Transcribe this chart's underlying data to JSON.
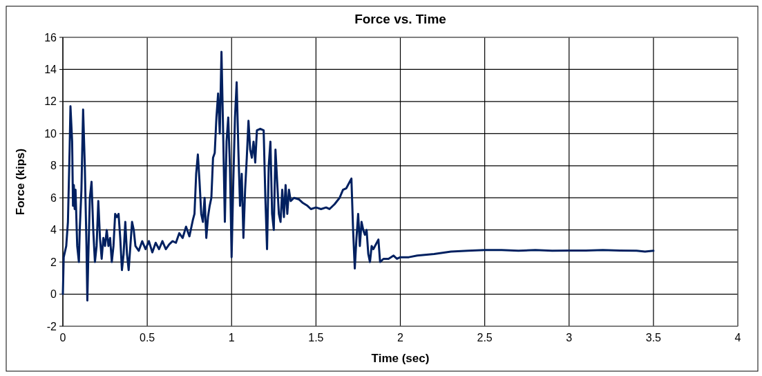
{
  "chart_data": {
    "type": "line",
    "title": "Force vs. Time",
    "xlabel": "Time (sec)",
    "ylabel": "Force (kips)",
    "xlim": [
      0,
      4
    ],
    "xticks": [
      0,
      0.5,
      1,
      1.5,
      2,
      2.5,
      3,
      3.5,
      4
    ],
    "ylim": [
      -2,
      16
    ],
    "yticks": [
      -2,
      0,
      2,
      4,
      6,
      8,
      10,
      12,
      14,
      16
    ],
    "grid": true,
    "marker": "none",
    "line_style": "solid",
    "series": [
      {
        "color": "#002060",
        "x": [
          0,
          0.005,
          0.02,
          0.03,
          0.04,
          0.045,
          0.055,
          0.06,
          0.065,
          0.07,
          0.075,
          0.085,
          0.095,
          0.1,
          0.11,
          0.12,
          0.13,
          0.14,
          0.145,
          0.15,
          0.155,
          0.16,
          0.17,
          0.18,
          0.19,
          0.2,
          0.21,
          0.22,
          0.23,
          0.24,
          0.25,
          0.26,
          0.27,
          0.28,
          0.29,
          0.3,
          0.31,
          0.32,
          0.33,
          0.34,
          0.35,
          0.36,
          0.37,
          0.38,
          0.39,
          0.4,
          0.41,
          0.42,
          0.43,
          0.45,
          0.47,
          0.49,
          0.51,
          0.53,
          0.55,
          0.57,
          0.59,
          0.61,
          0.63,
          0.65,
          0.67,
          0.69,
          0.71,
          0.73,
          0.75,
          0.77,
          0.78,
          0.79,
          0.8,
          0.81,
          0.82,
          0.83,
          0.84,
          0.85,
          0.86,
          0.87,
          0.88,
          0.89,
          0.9,
          0.91,
          0.92,
          0.93,
          0.94,
          0.95,
          0.96,
          0.97,
          0.98,
          0.99,
          1.0,
          1.01,
          1.02,
          1.03,
          1.04,
          1.05,
          1.06,
          1.07,
          1.08,
          1.09,
          1.1,
          1.11,
          1.12,
          1.13,
          1.14,
          1.15,
          1.17,
          1.19,
          1.2,
          1.21,
          1.22,
          1.23,
          1.24,
          1.25,
          1.26,
          1.27,
          1.28,
          1.29,
          1.3,
          1.31,
          1.32,
          1.33,
          1.34,
          1.35,
          1.37,
          1.4,
          1.42,
          1.45,
          1.47,
          1.5,
          1.53,
          1.56,
          1.58,
          1.61,
          1.64,
          1.66,
          1.68,
          1.7,
          1.71,
          1.72,
          1.73,
          1.74,
          1.75,
          1.76,
          1.77,
          1.78,
          1.79,
          1.8,
          1.81,
          1.82,
          1.83,
          1.84,
          1.86,
          1.87,
          1.88,
          1.9,
          1.93,
          1.96,
          1.98,
          2.0,
          2.05,
          2.1,
          2.2,
          2.3,
          2.4,
          2.5,
          2.6,
          2.7,
          2.8,
          2.9,
          3.0,
          3.1,
          3.2,
          3.3,
          3.4,
          3.45,
          3.5
        ],
        "values": [
          0,
          2.3,
          3,
          4.5,
          9,
          11.7,
          9.5,
          5.5,
          6.8,
          5.3,
          6.5,
          3,
          2,
          4,
          6.5,
          11.5,
          8,
          3,
          -0.4,
          2,
          4,
          6,
          7,
          4,
          2,
          3,
          5.8,
          3.5,
          2.2,
          3.5,
          3,
          4,
          3,
          3.5,
          2,
          3,
          5,
          4.8,
          5,
          3.5,
          1.5,
          2.5,
          4.5,
          2.5,
          1.5,
          3,
          4.5,
          4,
          3,
          2.7,
          3.3,
          2.8,
          3.3,
          2.6,
          3.2,
          2.8,
          3.3,
          2.8,
          3.1,
          3.3,
          3.2,
          3.8,
          3.5,
          4.2,
          3.6,
          4.6,
          5,
          7.5,
          8.7,
          7,
          5,
          4.5,
          6,
          3.5,
          4.8,
          5.5,
          6,
          8.5,
          8.8,
          11,
          12.5,
          10,
          15.1,
          10,
          4.5,
          9.5,
          11,
          8,
          2.3,
          7,
          11,
          13.2,
          9,
          5.5,
          7.5,
          3.5,
          6.5,
          8.5,
          10.8,
          9,
          8.5,
          9.5,
          8.2,
          10.2,
          10.3,
          10.2,
          6,
          2.8,
          8,
          9.5,
          5,
          4,
          9,
          7,
          5,
          4.5,
          6.5,
          4.8,
          6.8,
          5,
          6.5,
          5.8,
          6,
          5.9,
          5.7,
          5.5,
          5.3,
          5.4,
          5.3,
          5.4,
          5.3,
          5.6,
          6,
          6.5,
          6.6,
          7,
          7.2,
          4,
          1.6,
          3.5,
          5,
          3,
          4.5,
          4,
          3.7,
          4,
          2.5,
          2,
          3,
          2.8,
          3.2,
          3.4,
          2,
          2.2,
          2.2,
          2.4,
          2.2,
          2.3,
          2.3,
          2.4,
          2.5,
          2.65,
          2.7,
          2.75,
          2.75,
          2.7,
          2.75,
          2.7,
          2.72,
          2.72,
          2.75,
          2.72,
          2.7,
          2.65,
          2.7
        ]
      }
    ]
  }
}
